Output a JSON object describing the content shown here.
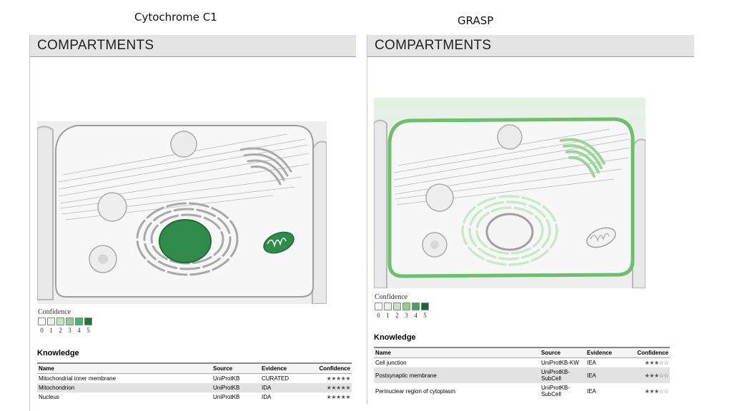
{
  "panels": [
    {
      "figure_title": "Cytochrome C1",
      "header": "COMPARTMENTS",
      "confidence_label": "Confidence",
      "confidence_levels": [
        "0",
        "1",
        "2",
        "3",
        "4",
        "5"
      ],
      "confidence_colors": [
        "#ffffff",
        "#e6f4e6",
        "#c2e6c2",
        "#8fd08f",
        "#4db36b",
        "#1e7a3c"
      ],
      "knowledge_title": "Knowledge",
      "columns": [
        "Name",
        "Source",
        "Evidence",
        "Confidence"
      ],
      "rows": [
        {
          "name": "Mitochondrial inner membrane",
          "source": "UniProtKB",
          "evidence": "CURATED",
          "stars": "★★★★★"
        },
        {
          "name": "Mitochondrion",
          "source": "UniProtKB",
          "evidence": "IDA",
          "stars": "★★★★★"
        },
        {
          "name": "Nucleus",
          "source": "UniProtKB",
          "evidence": "IDA",
          "stars": "★★★★★"
        }
      ]
    },
    {
      "figure_title": "GRASP",
      "header": "COMPARTMENTS",
      "confidence_label": "Confidence",
      "confidence_levels": [
        "0",
        "1",
        "2",
        "3",
        "4",
        "5"
      ],
      "confidence_colors": [
        "#ffffff",
        "#e6f4e6",
        "#c2e6c2",
        "#8fd08f",
        "#3aa85a",
        "#0f6b30"
      ],
      "knowledge_title": "Knowledge",
      "columns": [
        "Name",
        "Source",
        "Evidence",
        "Confidence"
      ],
      "rows": [
        {
          "name": "Cell junction",
          "source": "UniProtKB-KW",
          "evidence": "IEA",
          "stars": "★★★☆☆"
        },
        {
          "name": "Postsynaptic membrane",
          "source": "UniProtKB-SubCell",
          "evidence": "IEA",
          "stars": "★★★☆☆"
        },
        {
          "name": "Perinuclear region of cytoplasm",
          "source": "UniProtKB-SubCell",
          "evidence": "IEA",
          "stars": "★★★☆☆"
        }
      ]
    }
  ],
  "colors": {
    "nucleus_fill_left": "#2e8b4a",
    "mito_fill_left": "#2e8b4a",
    "membrane_left": "#9e9e9e",
    "membrane_right": "#6cc06c",
    "golgi_right": "#9ad69a",
    "er_right": "#c8eac8"
  }
}
